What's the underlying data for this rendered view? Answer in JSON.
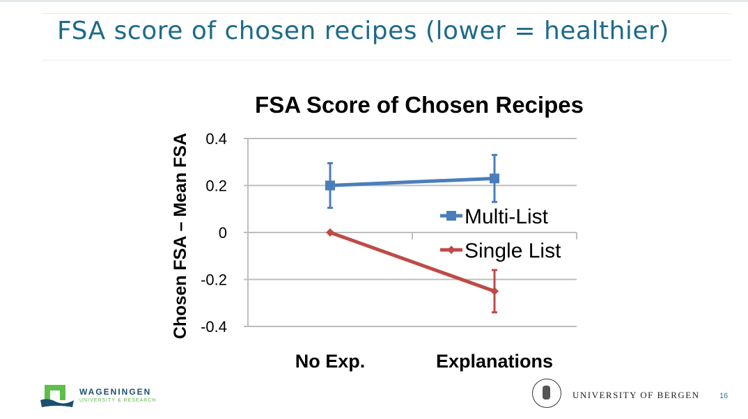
{
  "slide": {
    "title": "FSA score of chosen recipes (lower = healthier)",
    "page_number": "16"
  },
  "logos": {
    "left_name": "WAGENINGEN",
    "left_sub": "UNIVERSITY & RESEARCH",
    "right_name": "UNIVERSITY OF BERGEN"
  },
  "chart_data": {
    "type": "line",
    "title": "FSA Score of Chosen Recipes",
    "xlabel": "",
    "ylabel": "Chosen FSA – Mean FSA",
    "categories": [
      "No Exp.",
      "Explanations"
    ],
    "ylim": [
      -0.4,
      0.4
    ],
    "yticks": [
      0.4,
      0.2,
      0,
      -0.2,
      -0.4
    ],
    "ytick_labels": [
      "0.4",
      "0.2",
      "0",
      "-0.2",
      "-0.4"
    ],
    "grid": true,
    "legend_position": "right",
    "series": [
      {
        "name": "Multi-List",
        "color": "#4a7ebb",
        "marker": "square",
        "values": [
          0.2,
          0.23
        ],
        "err_low": [
          0.105,
          0.13
        ],
        "err_high": [
          0.295,
          0.33
        ]
      },
      {
        "name": "Single List",
        "color": "#be4b48",
        "marker": "diamond",
        "values": [
          0,
          -0.25
        ],
        "err_low": [
          null,
          -0.34
        ],
        "err_high": [
          null,
          -0.16
        ]
      }
    ]
  }
}
